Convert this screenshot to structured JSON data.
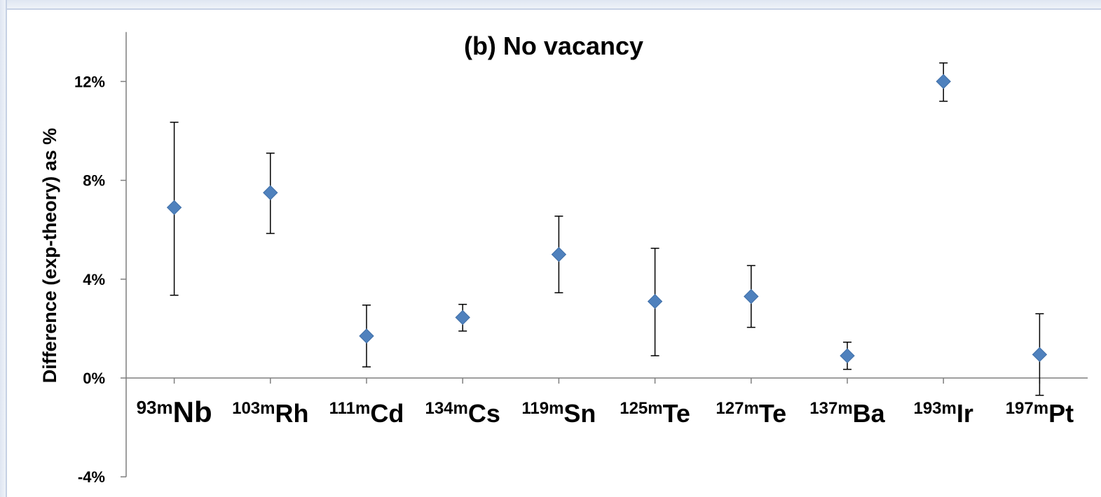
{
  "chart_data": {
    "type": "scatter",
    "title": "(b) No vacancy",
    "xlabel": "",
    "ylabel": "Difference (exp-theory) as %",
    "ylim": [
      -4,
      14
    ],
    "yticks": [
      {
        "value": -4,
        "label": "-4%"
      },
      {
        "value": 0,
        "label": "0%"
      },
      {
        "value": 4,
        "label": "4%"
      },
      {
        "value": 8,
        "label": "8%"
      },
      {
        "value": 12,
        "label": "12%"
      }
    ],
    "grid": false,
    "marker": "diamond",
    "marker_color": "#4f81bd",
    "categories": [
      {
        "mass": "93m",
        "element": "Nb"
      },
      {
        "mass": "103m",
        "element": "Rh"
      },
      {
        "mass": "111m",
        "element": "Cd"
      },
      {
        "mass": "134m",
        "element": "Cs"
      },
      {
        "mass": "119m",
        "element": "Sn"
      },
      {
        "mass": "125m",
        "element": "Te"
      },
      {
        "mass": "127m",
        "element": "Te"
      },
      {
        "mass": "137m",
        "element": "Ba"
      },
      {
        "mass": "193m",
        "element": "Ir"
      },
      {
        "mass": "197m",
        "element": "Pt"
      }
    ],
    "values": [
      6.9,
      7.5,
      1.7,
      2.45,
      5.0,
      3.1,
      3.3,
      0.9,
      12.0,
      0.95
    ],
    "error_low": [
      3.35,
      5.85,
      0.45,
      1.9,
      3.45,
      0.9,
      2.05,
      0.35,
      11.2,
      -0.7
    ],
    "error_high": [
      10.35,
      9.1,
      2.95,
      2.98,
      6.55,
      5.25,
      4.55,
      1.45,
      12.75,
      2.6
    ]
  }
}
